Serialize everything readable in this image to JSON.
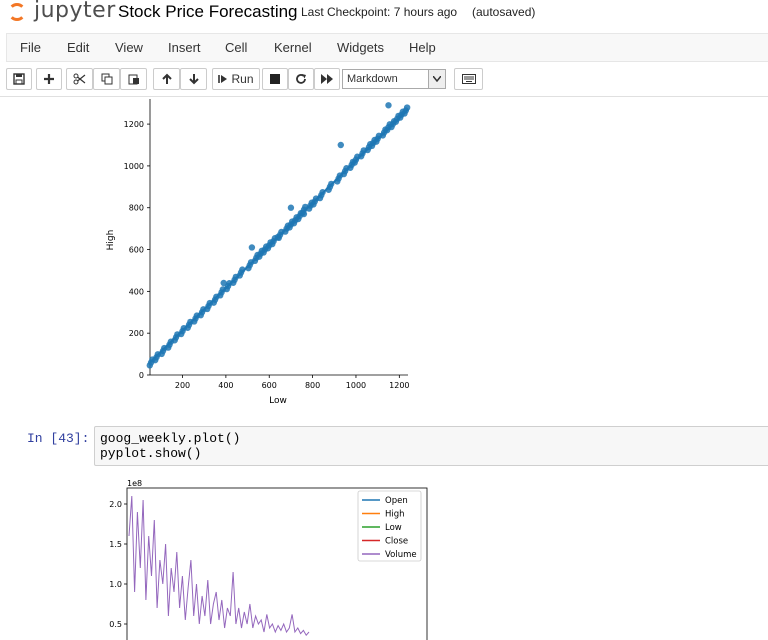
{
  "header": {
    "logo_text": "jupyter",
    "notebook_title": "Stock Price Forecasting",
    "checkpoint": "Last Checkpoint: 7 hours ago",
    "autosave": "(autosaved)"
  },
  "menu": [
    "File",
    "Edit",
    "View",
    "Insert",
    "Cell",
    "Kernel",
    "Widgets",
    "Help"
  ],
  "toolbar": {
    "buttons": [
      "save-icon",
      "plus-icon",
      "cut-icon",
      "copy-icon",
      "paste-icon",
      "arrow-up-icon",
      "arrow-down-icon",
      "run-button",
      "stop-icon",
      "restart-icon",
      "fast-forward-icon",
      "keyboard-icon"
    ],
    "run_label": "Run",
    "cell_type": "Markdown"
  },
  "cells": {
    "input_prompt": "In [43]:",
    "code": [
      "goog_weekly.plot()",
      "pyplot.show()"
    ]
  },
  "chart_data": [
    {
      "type": "scatter",
      "title": "",
      "xlabel": "Low",
      "ylabel": "High",
      "xlim": [
        50,
        1240
      ],
      "ylim": [
        0,
        1320
      ],
      "x_ticks": [
        "200",
        "400",
        "600",
        "800",
        "1000",
        "1200"
      ],
      "y_ticks": [
        "0",
        "200",
        "400",
        "600",
        "800",
        "1000",
        "1200"
      ],
      "color": "#1f77b4",
      "points_x": [
        55,
        80,
        110,
        140,
        170,
        200,
        230,
        260,
        290,
        320,
        350,
        380,
        410,
        440,
        470,
        510,
        540,
        560,
        580,
        600,
        620,
        650,
        680,
        700,
        720,
        740,
        760,
        790,
        810,
        840,
        880,
        920,
        950,
        980,
        1000,
        1030,
        1060,
        1080,
        1100,
        1130,
        1150,
        1170,
        1190,
        1210,
        1230
      ],
      "points_y": [
        60,
        85,
        115,
        145,
        180,
        210,
        240,
        270,
        300,
        330,
        360,
        395,
        425,
        455,
        490,
        525,
        560,
        580,
        600,
        620,
        640,
        670,
        700,
        720,
        740,
        760,
        790,
        810,
        830,
        860,
        900,
        940,
        975,
        1005,
        1030,
        1060,
        1090,
        1110,
        1130,
        1160,
        1185,
        1200,
        1225,
        1245,
        1265
      ],
      "outliers_x": [
        390,
        520,
        640,
        700,
        760,
        930,
        1150
      ],
      "outliers_y": [
        440,
        610,
        660,
        800,
        770,
        1100,
        1290
      ]
    },
    {
      "type": "line",
      "title": "",
      "xlabel": "",
      "ylabel": "",
      "offset_label": "1e8",
      "y_ticks": [
        "0.5",
        "1.0",
        "1.5",
        "2.0"
      ],
      "ylim": [
        0.3,
        2.2
      ],
      "legend_position": "top-right",
      "series": [
        {
          "name": "Open",
          "color": "#1f77b4"
        },
        {
          "name": "High",
          "color": "#ff7f0e"
        },
        {
          "name": "Low",
          "color": "#2ca02c"
        },
        {
          "name": "Close",
          "color": "#d62728"
        },
        {
          "name": "Volume",
          "color": "#9467bd",
          "values": [
            1.6,
            2.1,
            0.9,
            1.9,
            1.2,
            2.05,
            0.8,
            1.6,
            1.1,
            1.8,
            0.7,
            1.3,
            1.0,
            1.5,
            0.6,
            1.2,
            0.9,
            1.4,
            0.7,
            1.1,
            0.55,
            0.95,
            1.3,
            0.6,
            1.0,
            0.5,
            0.85,
            0.6,
            1.05,
            0.5,
            0.75,
            0.9,
            0.55,
            0.8,
            0.45,
            0.7,
            0.6,
            1.15,
            0.5,
            0.7,
            0.45,
            0.65,
            0.5,
            0.75,
            0.45,
            0.6,
            0.5,
            0.55,
            0.4,
            0.62,
            0.45,
            0.5,
            0.4,
            0.48,
            0.42,
            0.5,
            0.4,
            0.45,
            0.62,
            0.4,
            0.45,
            0.38,
            0.42,
            0.36,
            0.4
          ]
        }
      ]
    }
  ]
}
